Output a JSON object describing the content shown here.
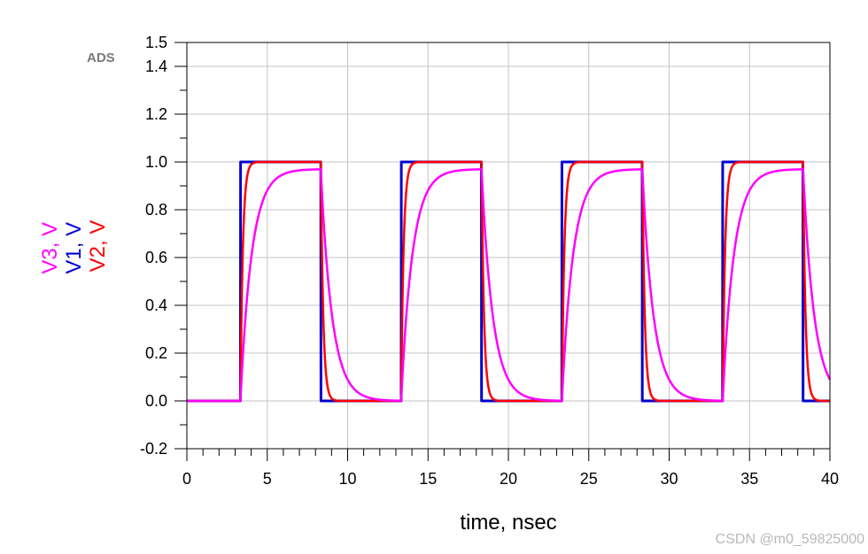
{
  "brand": {
    "ads_label": "ADS",
    "watermark": "CSDN @m0_59825000"
  },
  "chart_data": {
    "type": "line",
    "xlabel": "time, nsec",
    "ylabel_parts": [
      {
        "text": "V3, V",
        "color": "#ff00ff"
      },
      {
        "text": "V1, V",
        "color": "#0000cc"
      },
      {
        "text": "V2, V",
        "color": "#ff0000"
      }
    ],
    "xlim": [
      0,
      40
    ],
    "ylim": [
      -0.2,
      1.5
    ],
    "x_ticks": [
      0,
      5,
      10,
      15,
      20,
      25,
      30,
      35,
      40
    ],
    "x_tick_labels": [
      "0",
      "5",
      "10",
      "15",
      "20",
      "25",
      "30",
      "35",
      "40"
    ],
    "y_ticks": [
      -0.2,
      0.0,
      0.2,
      0.4,
      0.6,
      0.8,
      1.0,
      1.2,
      1.4,
      1.5
    ],
    "y_tick_labels": [
      "-0.2",
      "0.0",
      "0.2",
      "0.4",
      "0.6",
      "0.8",
      "1.0",
      "1.2",
      "1.4",
      "1.5"
    ],
    "grid": true,
    "pulse_edges": {
      "rise_ns": [
        3.33,
        13.33,
        23.33,
        33.33
      ],
      "fall_ns": [
        8.33,
        18.33,
        28.33,
        38.33
      ]
    },
    "series": [
      {
        "name": "V1",
        "color": "#0000cc",
        "high": 1.0,
        "low": 0.0,
        "tau_ns": 0.0,
        "width": 3
      },
      {
        "name": "V2",
        "color": "#ff0000",
        "high": 1.0,
        "low": 0.0,
        "tau_ns": 0.15,
        "width": 2.5
      },
      {
        "name": "V3",
        "color": "#ff00ff",
        "high": 0.97,
        "low": 0.0,
        "tau_ns": 0.7,
        "width": 2.5
      }
    ]
  }
}
